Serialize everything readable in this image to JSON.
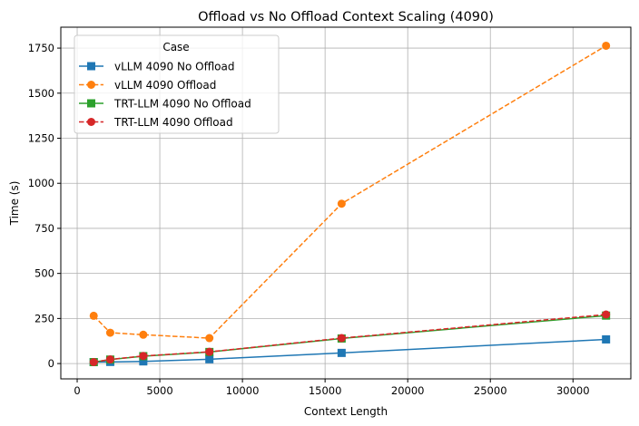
{
  "chart_data": {
    "type": "line",
    "title": "Offload vs No Offload Context Scaling (4090)",
    "xlabel": "Context Length",
    "ylabel": "Time (s)",
    "xlim": [
      -990,
      33500
    ],
    "ylim": [
      -85,
      1866
    ],
    "xticks": [
      0,
      5000,
      10000,
      15000,
      20000,
      25000,
      30000
    ],
    "yticks": [
      0,
      250,
      500,
      750,
      1000,
      1250,
      1500,
      1750
    ],
    "grid": true,
    "legend": {
      "title": "Case",
      "placement": "upper-left"
    },
    "x": [
      1000,
      2000,
      4000,
      8000,
      16000,
      32000
    ],
    "series": [
      {
        "name": "vLLM 4090 No Offload",
        "color": "#1f77b4",
        "marker": "square",
        "linestyle": "solid",
        "values": [
          8,
          9,
          12,
          24,
          59,
          134
        ]
      },
      {
        "name": "vLLM 4090 Offload",
        "color": "#ff7f0e",
        "marker": "circle",
        "linestyle": "dashed",
        "values": [
          265,
          171,
          160,
          141,
          887,
          1763
        ]
      },
      {
        "name": "TRT-LLM 4090 No Offload",
        "color": "#2ca02c",
        "marker": "square",
        "linestyle": "solid",
        "values": [
          8,
          22,
          41,
          64,
          139,
          266
        ]
      },
      {
        "name": "TRT-LLM 4090 Offload",
        "color": "#d62728",
        "marker": "circle",
        "linestyle": "dashed",
        "values": [
          8,
          23,
          42,
          65,
          141,
          272
        ]
      }
    ]
  }
}
